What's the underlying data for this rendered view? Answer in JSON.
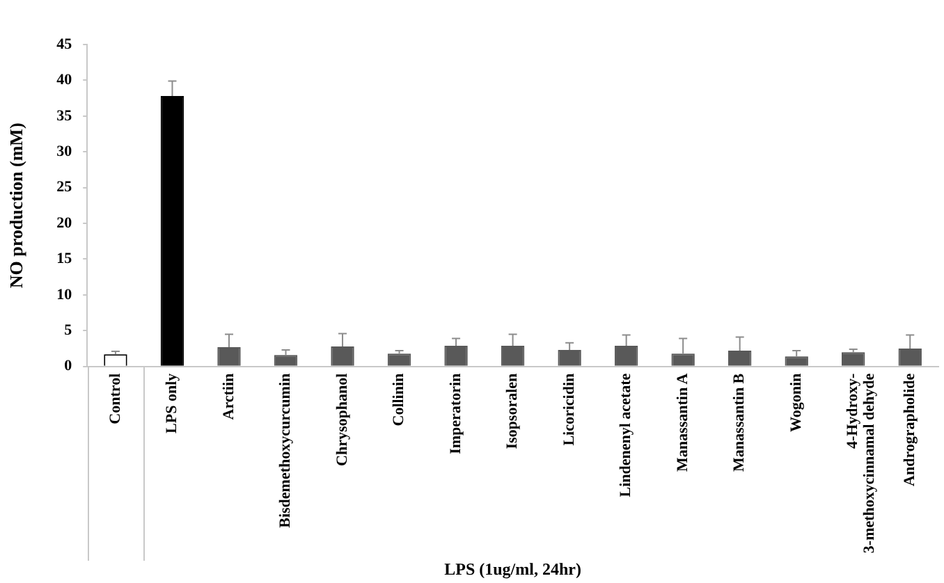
{
  "chart_data": {
    "type": "bar",
    "ylabel": "NO production (mM)",
    "xlabel": "LPS (1ug/ml, 24hr)",
    "categories": [
      "Control",
      "LPS only",
      "Arctiin",
      "Bisdemethoxycurcumin",
      "Chrysophanol",
      "Collinin",
      "Imperatorin",
      "Isopsoralen",
      "Licoricidin",
      "Lindenenyl acetate",
      "Manassantin A",
      "Manassantin B",
      "Wogonin",
      "4-Hydroxy-\n3-methoxycinnamal dehyde",
      "Andrographolide"
    ],
    "values": [
      1.7,
      37.8,
      2.7,
      1.6,
      2.8,
      1.8,
      2.9,
      2.9,
      2.3,
      2.9,
      1.8,
      2.2,
      1.4,
      2.0,
      2.5
    ],
    "errors": [
      [
        1.7,
        2.1
      ],
      [
        37.8,
        39.9
      ],
      [
        2.7,
        4.5
      ],
      [
        1.6,
        2.3
      ],
      [
        2.8,
        4.6
      ],
      [
        1.8,
        2.2
      ],
      [
        2.9,
        3.9
      ],
      [
        2.9,
        4.5
      ],
      [
        2.3,
        3.3
      ],
      [
        2.9,
        4.4
      ],
      [
        1.8,
        3.9
      ],
      [
        2.2,
        4.1
      ],
      [
        1.4,
        2.2
      ],
      [
        2.0,
        2.4
      ],
      [
        2.5,
        4.4
      ]
    ],
    "colors": [
      "#ffffff",
      "#000000",
      "#595959",
      "#595959",
      "#595959",
      "#595959",
      "#595959",
      "#595959",
      "#595959",
      "#595959",
      "#595959",
      "#595959",
      "#595959",
      "#595959",
      "#595959"
    ],
    "ylim": [
      0,
      45
    ],
    "yticks": [
      0,
      5,
      10,
      15,
      20,
      25,
      30,
      35,
      40,
      45
    ],
    "grid": false,
    "legend": false
  }
}
